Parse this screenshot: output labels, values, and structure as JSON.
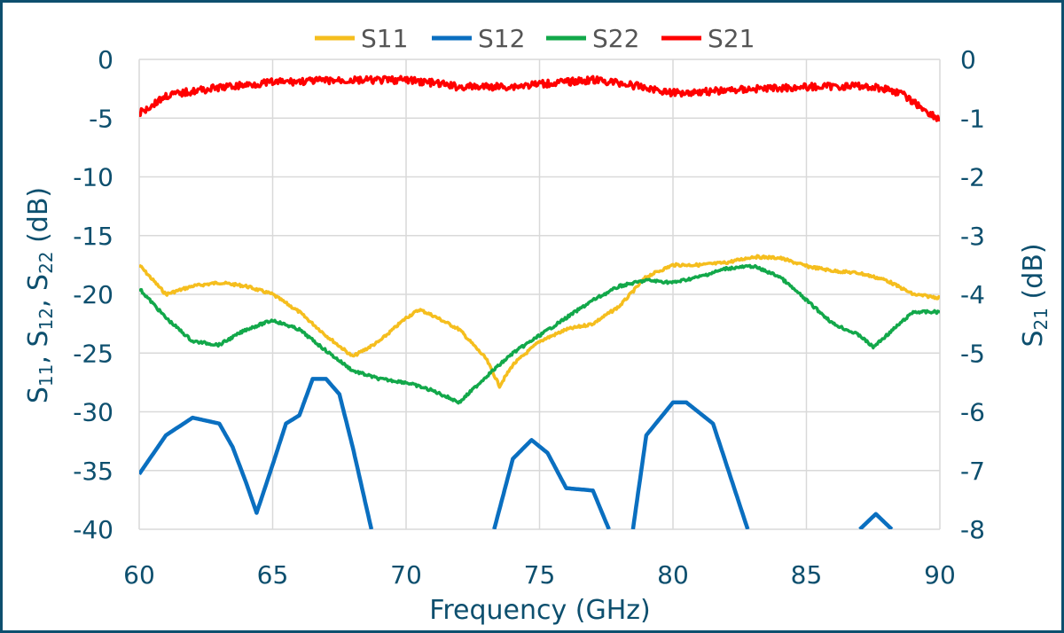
{
  "chart_data": {
    "type": "line",
    "title": "",
    "xlabel": "Frequency (GHz)",
    "ylabel_left": {
      "parts": [
        "S",
        "11",
        ", S",
        "12",
        ", S",
        "22",
        " (dB)"
      ]
    },
    "ylabel_right": {
      "parts": [
        "S",
        "21",
        " (dB)"
      ]
    },
    "xlim": [
      60,
      90
    ],
    "ylim_left": [
      -40,
      0
    ],
    "ylim_right": [
      -8,
      0
    ],
    "xticks": [
      "60",
      "65",
      "70",
      "75",
      "80",
      "85",
      "90"
    ],
    "yticks_left": [
      "0",
      "-5",
      "-10",
      "-15",
      "-20",
      "-25",
      "-30",
      "-35",
      "-40"
    ],
    "yticks_right": [
      "0",
      "-1",
      "-2",
      "-3",
      "-4",
      "-5",
      "-6",
      "-7",
      "-8"
    ],
    "grid": true,
    "legend_position": "top",
    "series": [
      {
        "name": "S11",
        "axis": "left",
        "color": "#f5be1e",
        "x": [
          60,
          61,
          62,
          63,
          64,
          65,
          66,
          67,
          68,
          69,
          70,
          70.5,
          71,
          72,
          73,
          73.5,
          74,
          75,
          76,
          77,
          78,
          79,
          80,
          81,
          82,
          83,
          84,
          85,
          86,
          87,
          88,
          89,
          90
        ],
        "y": [
          -17.5,
          -20,
          -19.3,
          -19,
          -19.3,
          -20,
          -21.5,
          -23.5,
          -25.3,
          -24,
          -22,
          -21.3,
          -21.8,
          -23,
          -25.5,
          -27.8,
          -26,
          -24,
          -23,
          -22.5,
          -21,
          -18.5,
          -17.5,
          -17.5,
          -17.3,
          -16.8,
          -16.9,
          -17.6,
          -18,
          -18.2,
          -18.8,
          -20,
          -20.3
        ]
      },
      {
        "name": "S12",
        "axis": "left",
        "color": "#0a6fc0",
        "x": [
          60,
          61,
          62,
          63,
          63.5,
          64,
          64.4,
          65,
          65.5,
          66,
          66.5,
          67,
          67.5,
          68,
          68.7,
          null,
          73.3,
          74,
          74.7,
          75.3,
          76,
          77,
          77.6,
          null,
          78.5,
          79,
          80,
          80.5,
          81.5,
          82.8,
          null,
          87,
          87.6,
          88.2
        ],
        "y": [
          -35.3,
          -32,
          -30.5,
          -31,
          -33,
          -36,
          -38.6,
          -34.5,
          -31,
          -30.3,
          -27.2,
          -27.2,
          -28.5,
          -33,
          -40,
          null,
          -40,
          -34,
          -32.4,
          -33.5,
          -36.5,
          -36.7,
          -40,
          null,
          -40,
          -32,
          -29.2,
          -29.2,
          -31,
          -40,
          null,
          -40,
          -38.7,
          -40
        ]
      },
      {
        "name": "S22",
        "axis": "left",
        "color": "#12a84a",
        "x": [
          60,
          61,
          62,
          63,
          64,
          65,
          66,
          67,
          68,
          69,
          70,
          71,
          72,
          73,
          74,
          75,
          76,
          77,
          78,
          79,
          80,
          81,
          82,
          83,
          84,
          85,
          86,
          87,
          87.5,
          88,
          89,
          90
        ],
        "y": [
          -19.5,
          -22,
          -24,
          -24.3,
          -23,
          -22.2,
          -23,
          -24.8,
          -26.5,
          -27.2,
          -27.5,
          -28.2,
          -29.2,
          -27,
          -25,
          -23.5,
          -22,
          -20.5,
          -19.3,
          -18.8,
          -19,
          -18.5,
          -17.8,
          -17.6,
          -18.5,
          -20.5,
          -22.5,
          -23.5,
          -24.5,
          -23.5,
          -21.5,
          -21.5
        ]
      },
      {
        "name": "S21",
        "axis": "right",
        "color": "#ff0000",
        "x": [
          60,
          61,
          62,
          63,
          65,
          67,
          70,
          71,
          72,
          74,
          75,
          77,
          78,
          80,
          82,
          83,
          85,
          87,
          88,
          88.5,
          89,
          89.5,
          90
        ],
        "y": [
          -0.92,
          -0.62,
          -0.54,
          -0.48,
          -0.39,
          -0.36,
          -0.35,
          -0.4,
          -0.47,
          -0.46,
          -0.42,
          -0.35,
          -0.4,
          -0.57,
          -0.53,
          -0.5,
          -0.47,
          -0.45,
          -0.5,
          -0.57,
          -0.72,
          -0.88,
          -1.03
        ]
      }
    ]
  }
}
